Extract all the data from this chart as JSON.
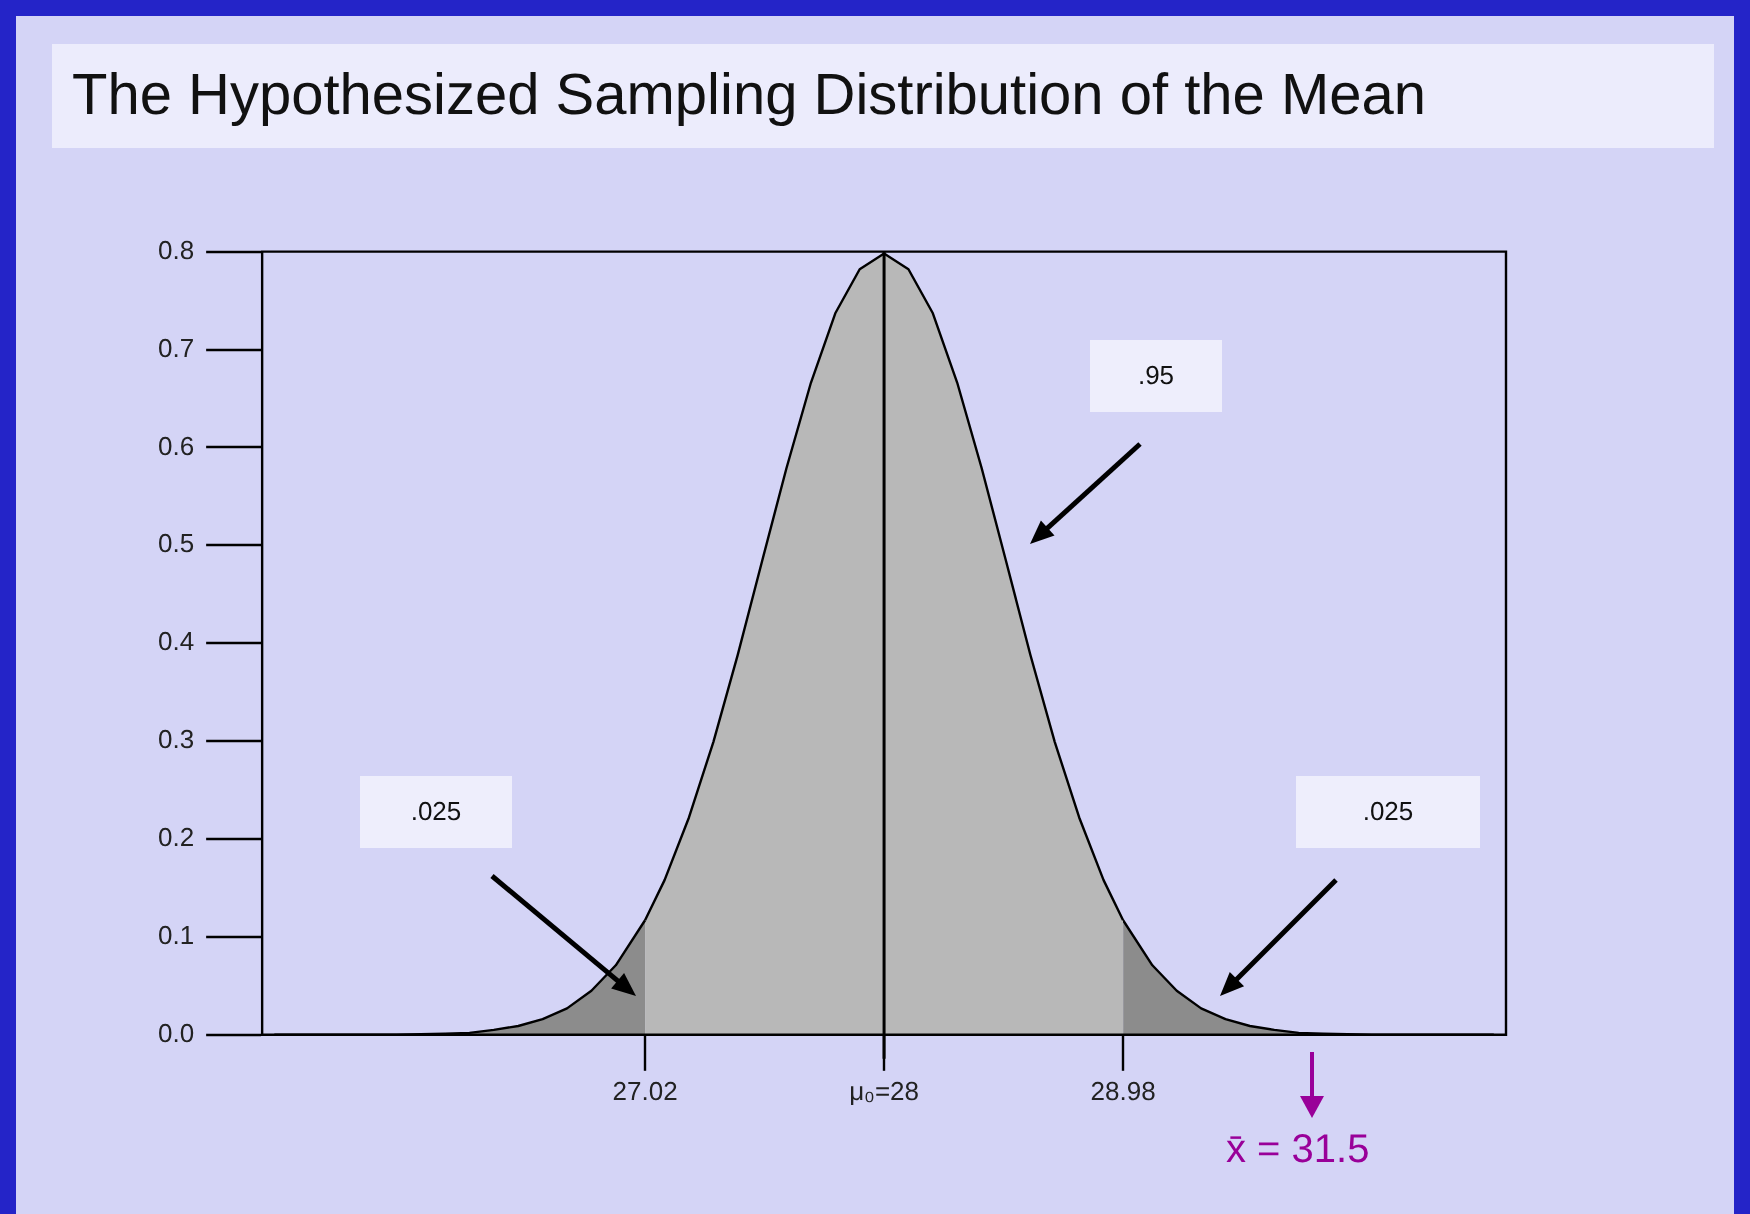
{
  "chart_data": {
    "type": "area",
    "title": "The Hypothesized Sampling Distribution of the Mean",
    "xlim": [
      25.45,
      30.55
    ],
    "ylim": [
      0,
      0.8
    ],
    "xticks": [
      27.02,
      {
        "value": 28,
        "label": "μ₀=28"
      },
      28.98
    ],
    "yticks": [
      {
        "value": 0,
        "label": "0.0"
      },
      0.1,
      0.2,
      0.3,
      0.4,
      0.5,
      0.6,
      0.7,
      0.8
    ],
    "grid": false,
    "legend": false,
    "series": [
      {
        "color": "#8c8c8c",
        "x": [
          25.5,
          25.8,
          26.0,
          26.2,
          26.3,
          26.4,
          26.5,
          26.6,
          26.7,
          26.8,
          26.9,
          27.02
        ],
        "values": [
          0,
          0,
          0,
          0.001,
          0.002,
          0.005,
          0.009,
          0.016,
          0.027,
          0.045,
          0.071,
          0.117
        ]
      },
      {
        "color": "#b8b8b8",
        "x": [
          27.02,
          27.1,
          27.2,
          27.3,
          27.4,
          27.5,
          27.6,
          27.7,
          27.8,
          27.9,
          28.0,
          28.1,
          28.2,
          28.3,
          28.4,
          28.5,
          28.6,
          28.7,
          28.8,
          28.9,
          28.98
        ],
        "values": [
          0.117,
          0.158,
          0.222,
          0.299,
          0.388,
          0.484,
          0.579,
          0.666,
          0.737,
          0.782,
          0.798,
          0.782,
          0.737,
          0.666,
          0.579,
          0.484,
          0.388,
          0.299,
          0.222,
          0.158,
          0.117
        ]
      },
      {
        "color": "#8c8c8c",
        "x": [
          28.98,
          29.1,
          29.2,
          29.3,
          29.4,
          29.5,
          29.6,
          29.7,
          29.8,
          30.0,
          30.2,
          30.5
        ],
        "values": [
          0.117,
          0.071,
          0.045,
          0.027,
          0.016,
          0.009,
          0.005,
          0.002,
          0.001,
          0,
          0,
          0
        ]
      }
    ],
    "ref_lines": [
      {
        "axis": "x",
        "value": 28,
        "color": "#000000"
      }
    ],
    "annotations": [
      ".025",
      ".95",
      ".025",
      "x̄ = 31.5"
    ]
  }
}
